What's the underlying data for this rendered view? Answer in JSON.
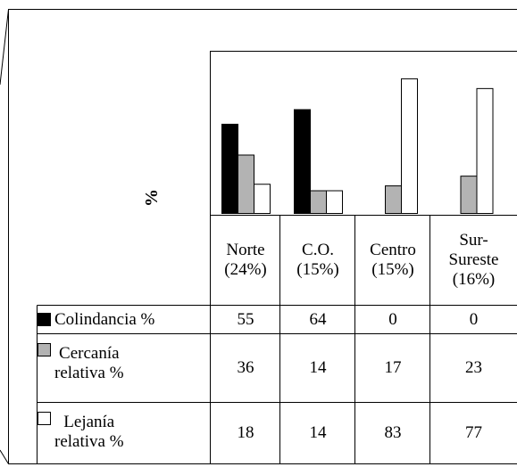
{
  "chart_data": {
    "type": "bar",
    "ylabel": "%",
    "ylim": [
      0,
      100
    ],
    "grid": false,
    "categories": [
      {
        "line1": "Norte",
        "line2": "(24%)"
      },
      {
        "line1": "C.O.",
        "line2": "(15%)"
      },
      {
        "line1": "Centro",
        "line2": "(15%)"
      },
      {
        "line1": "Sur-",
        "line2": "Sureste",
        "line3": "(16%)"
      }
    ],
    "series": [
      {
        "name": "Colindancia %",
        "label_lines": [
          "Colindancia %"
        ],
        "color": "#000000",
        "values": [
          55,
          64,
          0,
          0
        ]
      },
      {
        "name": "Cercanía relativa %",
        "label_lines": [
          "Cercanía",
          "relativa %"
        ],
        "color": "#b3b3b3",
        "values": [
          36,
          14,
          17,
          23
        ]
      },
      {
        "name": "Lejanía relativa %",
        "label_lines": [
          "Lejanía",
          "relativa %"
        ],
        "color": "#ffffff",
        "values": [
          18,
          14,
          83,
          77
        ]
      }
    ]
  }
}
